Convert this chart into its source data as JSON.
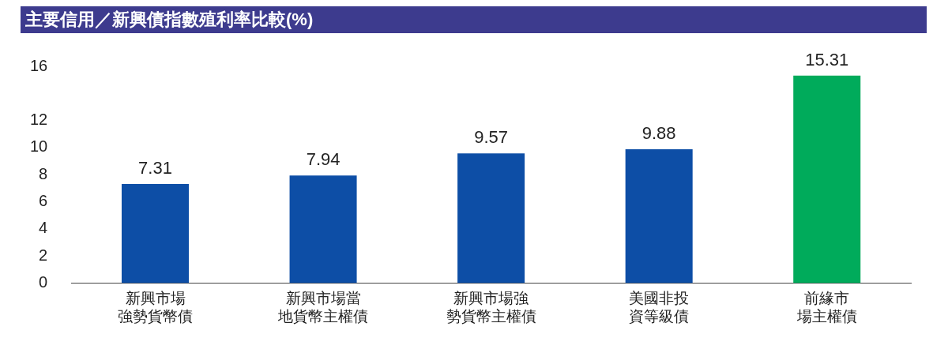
{
  "chart_data": {
    "type": "bar",
    "title": "主要信用／新興債指數殖利率比較(%)",
    "categories": [
      "新興市場強勢貨幣債",
      "新興市場當地貨幣主權債",
      "新興市場強勢貨幣主權債",
      "美國非投資等級債",
      "前緣市場主權債"
    ],
    "values": [
      7.31,
      7.94,
      9.57,
      9.88,
      15.31
    ],
    "colors": [
      "#0d4ea6",
      "#0d4ea6",
      "#0d4ea6",
      "#0d4ea6",
      "#00ab5b"
    ],
    "ylim": [
      0,
      16
    ],
    "yticks": [
      0,
      2,
      4,
      6,
      8,
      10,
      12,
      16
    ],
    "grid": false,
    "data_labels": true,
    "legend": false
  }
}
